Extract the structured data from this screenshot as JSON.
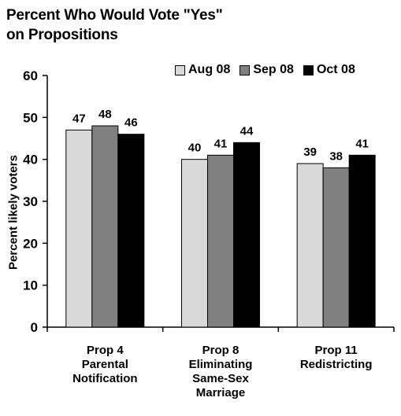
{
  "chart_data": {
    "type": "bar",
    "title": [
      "Percent Who Would Vote \"Yes\"",
      "on Propositions"
    ],
    "ylabel": "Percent likely voters",
    "xlabel": "",
    "ylim": [
      0,
      60
    ],
    "yticks": [
      0,
      10,
      20,
      30,
      40,
      50,
      60
    ],
    "grid": false,
    "legend_position": "top-right",
    "categories": [
      [
        "Prop 4",
        "Parental",
        "Notification"
      ],
      [
        "Prop 8",
        "Eliminating",
        "Same-Sex",
        "Marriage"
      ],
      [
        "Prop 11",
        "Redistricting"
      ]
    ],
    "series": [
      {
        "name": "Aug 08",
        "color": "#d9d9d9",
        "values": [
          47,
          40,
          39
        ]
      },
      {
        "name": "Sep 08",
        "color": "#808080",
        "values": [
          48,
          41,
          38
        ]
      },
      {
        "name": "Oct 08",
        "color": "#000000",
        "values": [
          46,
          44,
          41
        ]
      }
    ]
  }
}
